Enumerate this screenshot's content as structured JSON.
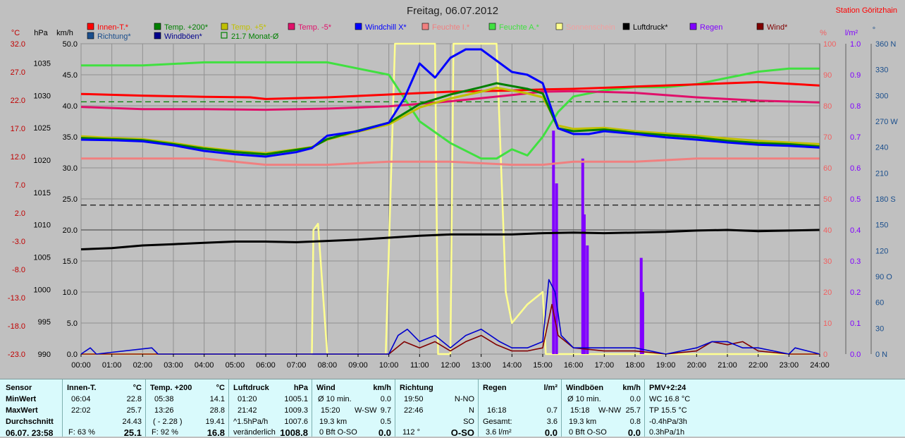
{
  "title": "Freitag, 06.07.2012",
  "station": "Station Göritzhain",
  "axis_units": {
    "temp": "°C",
    "pressure": "hPa",
    "wind": "km/h",
    "humidity": "%",
    "rain": "l/m²",
    "direction": "°"
  },
  "legend": [
    {
      "label": "Innen-T.*",
      "color": "#ff0000",
      "style": "solid"
    },
    {
      "label": "Temp. +200*",
      "color": "#008000",
      "style": "solid"
    },
    {
      "label": "Temp. +5*",
      "color": "#c0c000",
      "style": "solid"
    },
    {
      "label": "Temp. -5*",
      "color": "#e0106a",
      "style": "solid"
    },
    {
      "label": "Windchill X*",
      "color": "#0000ff",
      "style": "solid"
    },
    {
      "label": "Feuchte I.*",
      "color": "#f08080",
      "style": "solid"
    },
    {
      "label": "Feuchte A.*",
      "color": "#40e040",
      "style": "solid"
    },
    {
      "label": "Sonnenschein",
      "color": "#ffff90",
      "style": "solid"
    },
    {
      "label": "Luftdruck*",
      "color": "#000000",
      "style": "solid"
    },
    {
      "label": "Regen",
      "color": "#8000ff",
      "style": "solid"
    },
    {
      "label": "Wind*",
      "color": "#800000",
      "style": "solid"
    },
    {
      "label": "Richtung*",
      "color": "#1a4e8c",
      "style": "solid"
    },
    {
      "label": "Windböen*",
      "color": "#00008b",
      "style": "solid"
    },
    {
      "label": "21.7 Monat-Ø",
      "color": "#008000",
      "style": "hollow"
    }
  ],
  "chart_data": {
    "type": "line",
    "title": "Freitag, 06.07.2012",
    "x_ticks": [
      "00:00",
      "01:00",
      "02:00",
      "03:00",
      "04:00",
      "05:00",
      "06:00",
      "07:00",
      "08:00",
      "09:00",
      "10:00",
      "11:00",
      "12:00",
      "13:00",
      "14:00",
      "15:00",
      "16:00",
      "17:00",
      "18:00",
      "19:00",
      "20:00",
      "21:00",
      "22:00",
      "23:00",
      "24:00"
    ],
    "xlim": [
      0,
      24
    ],
    "y_axes": {
      "temp": {
        "unit": "°C",
        "ticks": [
          "32.0",
          "27.0",
          "22.0",
          "17.0",
          "12.0",
          "7.0",
          "2.0",
          "-3.0",
          "-8.0",
          "-13.0",
          "-18.0",
          "-23.0"
        ],
        "range": [
          -23,
          32
        ]
      },
      "pressure": {
        "unit": "hPa",
        "ticks": [
          "1035",
          "1030",
          "1025",
          "1020",
          "1015",
          "1010",
          "1005",
          "1000",
          "995",
          "990"
        ],
        "range": [
          990,
          1038
        ]
      },
      "wind": {
        "unit": "km/h",
        "ticks": [
          "50.0",
          "45.0",
          "40.0",
          "35.0",
          "30.0",
          "25.0",
          "20.0",
          "15.0",
          "10.0",
          "5.0",
          "0.0"
        ],
        "range": [
          0,
          50
        ]
      },
      "humidity": {
        "unit": "%",
        "ticks": [
          "100",
          "90",
          "80",
          "70",
          "60",
          "50",
          "40",
          "30",
          "20",
          "10",
          "0"
        ],
        "range": [
          0,
          100
        ]
      },
      "rain": {
        "unit": "l/m²",
        "ticks": [
          "1.0",
          "0.9",
          "0.8",
          "0.7",
          "0.6",
          "0.5",
          "0.4",
          "0.3",
          "0.2",
          "0.1",
          "0.0"
        ],
        "range": [
          0,
          1
        ]
      },
      "direction": {
        "unit": "°",
        "ticks": [
          "360 N",
          "330",
          "300",
          "270 W",
          "240",
          "210",
          "180 S",
          "150",
          "120",
          "90 O",
          "60",
          "30",
          "0 N"
        ],
        "range": [
          0,
          360
        ]
      }
    },
    "reference_lines": [
      {
        "axis": "temp",
        "value": 21.7,
        "color": "#008000",
        "style": "dash"
      },
      {
        "axis": "humidity",
        "value": 48,
        "color": "#000000",
        "style": "dash"
      },
      {
        "axis": "wind",
        "value": 20,
        "color": "#666666",
        "style": "solid"
      }
    ],
    "series": [
      {
        "name": "Innen-T.*",
        "axis": "temp",
        "color": "#ff0000",
        "x": [
          0,
          2,
          4,
          5.5,
          6,
          8,
          10,
          12,
          14,
          15,
          16,
          18,
          20,
          21,
          22,
          23,
          24
        ],
        "y": [
          23.1,
          22.8,
          22.6,
          22.5,
          22.2,
          22.5,
          23.0,
          23.5,
          23.7,
          23.9,
          24.0,
          24.4,
          24.8,
          25.0,
          25.2,
          24.9,
          24.6
        ]
      },
      {
        "name": "Temp. +200*",
        "axis": "temp",
        "color": "#008000",
        "x": [
          0,
          1,
          2,
          3,
          4,
          5,
          6,
          7,
          7.5,
          8,
          9,
          10,
          11,
          12,
          13,
          13.5,
          14,
          14.5,
          15,
          15.5,
          16,
          17,
          18,
          19,
          20,
          21,
          22,
          23,
          24
        ],
        "y": [
          15.3,
          15.1,
          14.9,
          14.2,
          13.4,
          12.8,
          12.4,
          13.2,
          13.6,
          15.1,
          16.6,
          18.0,
          21.3,
          23.0,
          24.3,
          25.0,
          24.5,
          24.0,
          23.2,
          17.0,
          16.5,
          16.8,
          16.2,
          15.8,
          15.4,
          14.8,
          14.4,
          14.2,
          13.8
        ]
      },
      {
        "name": "Temp. +5*",
        "axis": "temp",
        "color": "#c0c000",
        "x": [
          0,
          1,
          2,
          3,
          4,
          5,
          6,
          7,
          7.5,
          8,
          9,
          10,
          11,
          12,
          13,
          13.5,
          14,
          14.5,
          15,
          15.5,
          16,
          17,
          18,
          19,
          20,
          21,
          22,
          23,
          24
        ],
        "y": [
          15.6,
          15.3,
          15.1,
          14.4,
          13.6,
          13.0,
          12.6,
          13.3,
          13.7,
          15.0,
          16.4,
          17.7,
          20.7,
          22.3,
          23.5,
          24.2,
          23.7,
          23.2,
          22.5,
          17.5,
          16.9,
          17.1,
          16.5,
          16.1,
          15.7,
          15.2,
          14.8,
          14.5,
          14.2
        ]
      },
      {
        "name": "Windchill X*",
        "axis": "temp",
        "color": "#0000ff",
        "x": [
          0,
          1,
          2,
          3,
          4,
          5,
          6,
          7,
          7.5,
          8,
          9,
          10,
          10.5,
          11,
          11.5,
          12,
          12.5,
          13,
          13.5,
          14,
          14.5,
          15,
          15.5,
          16,
          16.5,
          17,
          18,
          19,
          20,
          21,
          22,
          23,
          24
        ],
        "y": [
          15.0,
          14.9,
          14.7,
          14.0,
          13.0,
          12.4,
          12.0,
          12.8,
          13.5,
          15.7,
          16.5,
          18.0,
          22.3,
          28.5,
          26.0,
          29.5,
          31.0,
          31.0,
          29.0,
          27.0,
          26.5,
          25.0,
          17.0,
          16.0,
          16.0,
          16.5,
          16.0,
          15.4,
          15.0,
          14.5,
          14.1,
          13.9,
          13.6
        ]
      },
      {
        "name": "Temp. -5*",
        "axis": "temp",
        "color": "#e0106a",
        "x": [
          0,
          2,
          4,
          6,
          8,
          10,
          12,
          14,
          15,
          16,
          18,
          20,
          22,
          24
        ],
        "y": [
          20.8,
          20.4,
          20.4,
          20.3,
          20.5,
          20.9,
          21.8,
          22.9,
          23.5,
          23.6,
          23.3,
          22.5,
          21.9,
          21.6
        ]
      },
      {
        "name": "Luftdruck*",
        "axis": "pressure",
        "color": "#000000",
        "x": [
          0,
          1,
          2,
          3,
          4,
          5,
          6,
          7,
          8,
          9,
          10,
          11,
          12,
          13,
          14,
          15,
          16,
          17,
          18,
          19,
          20,
          21,
          22,
          23,
          24
        ],
        "y": [
          1006.2,
          1006.4,
          1006.8,
          1007.0,
          1007.2,
          1007.4,
          1007.4,
          1007.3,
          1007.5,
          1007.7,
          1008.0,
          1008.3,
          1008.5,
          1008.5,
          1008.5,
          1008.7,
          1008.8,
          1008.7,
          1008.8,
          1008.9,
          1009.1,
          1009.2,
          1009.0,
          1009.1,
          1009.2
        ]
      },
      {
        "name": "Feuchte I.*",
        "axis": "humidity",
        "color": "#f08080",
        "x": [
          0,
          2,
          4,
          5,
          6,
          8,
          10,
          12,
          14,
          15,
          16,
          18,
          20,
          22,
          24
        ],
        "y": [
          63,
          63,
          63,
          62,
          61,
          61,
          62,
          62,
          61,
          61,
          62,
          62,
          63,
          63,
          63
        ]
      },
      {
        "name": "Feuchte A.*",
        "axis": "humidity",
        "color": "#40e040",
        "x": [
          0,
          2,
          4,
          6,
          8,
          9,
          10,
          11,
          12,
          13,
          13.5,
          14,
          14.5,
          15,
          15.5,
          16,
          17,
          18,
          19,
          20,
          21,
          22,
          23,
          24
        ],
        "y": [
          93,
          93,
          94,
          94,
          94,
          92,
          90,
          75,
          68,
          63,
          63,
          66,
          64,
          70,
          78,
          83,
          85,
          86,
          86,
          87,
          89,
          91,
          92,
          92
        ]
      },
      {
        "name": "Sonnenschein",
        "axis": "wind",
        "color": "#ffff90",
        "x": [
          0,
          7.5,
          7.55,
          7.7,
          8.0,
          8.1,
          9.9,
          10.2,
          11.5,
          11.6,
          12.0,
          12.1,
          13.5,
          13.8,
          14.0,
          14.5,
          15.0,
          15.1,
          24
        ],
        "y": [
          0,
          0,
          20,
          21,
          0,
          0,
          0,
          50,
          50,
          0,
          0,
          50,
          50,
          10,
          5,
          8,
          10,
          0,
          0
        ]
      },
      {
        "name": "Wind*",
        "axis": "wind",
        "color": "#800000",
        "x": [
          0,
          10,
          10.5,
          11,
          11.5,
          12,
          12.5,
          13,
          13.5,
          14,
          14.5,
          15,
          15.3,
          15.5,
          16,
          17,
          18,
          19,
          20,
          20.5,
          21,
          21.5,
          22,
          23,
          24
        ],
        "y": [
          0,
          0,
          2,
          1,
          2,
          0.5,
          2,
          3,
          1.5,
          0.5,
          0.5,
          1,
          8,
          3,
          1,
          0.5,
          0.5,
          0,
          0.5,
          2,
          1.5,
          2,
          0.5,
          0,
          0
        ]
      },
      {
        "name": "Windböen*",
        "axis": "wind",
        "color": "#0000cc",
        "x": [
          0,
          0.3,
          0.5,
          2.3,
          2.5,
          10,
          10.3,
          10.6,
          11,
          11.5,
          12,
          12.5,
          13,
          13.3,
          13.6,
          14,
          14.5,
          15,
          15.2,
          15.4,
          15.6,
          16,
          17,
          18,
          19,
          20,
          20.5,
          21,
          21.5,
          22,
          23,
          23.2,
          24
        ],
        "y": [
          0,
          1,
          0,
          1,
          0,
          0,
          3,
          4,
          2,
          3,
          1,
          3,
          4,
          3,
          2,
          1,
          1,
          2,
          12,
          10,
          3,
          1,
          1,
          1,
          0,
          1,
          2,
          2,
          1,
          1,
          0,
          1,
          0
        ]
      },
      {
        "name": "Regen",
        "axis": "rain",
        "color": "#8000ff",
        "x": [
          15.35,
          15.45,
          16.3,
          16.35,
          16.45,
          18.2,
          18.25
        ],
        "y": [
          0.72,
          0.55,
          0.63,
          0.45,
          0.35,
          0.31,
          0.2
        ]
      }
    ]
  },
  "panel": {
    "sensor": {
      "header": "Sensor",
      "rows": [
        "MinWert",
        "MaxWert",
        "Durchschnitt",
        "06.07. 23:58"
      ]
    },
    "innen": {
      "header": "Innen-T.",
      "unit": "°C",
      "rows": [
        [
          "06:04",
          "22.8"
        ],
        [
          "22:02",
          "25.7"
        ],
        [
          "",
          "24.43"
        ],
        [
          "F: 63 %",
          "25.1"
        ]
      ]
    },
    "temp200": {
      "header": "Temp. +200",
      "unit": "°C",
      "rows": [
        [
          "05:38",
          "14.1"
        ],
        [
          "13:26",
          "28.8"
        ],
        [
          "( - 2.28 )",
          "19.41"
        ],
        [
          "F: 92 %",
          "16.8"
        ]
      ]
    },
    "luftdruck": {
      "header": "Luftdruck",
      "unit": "hPa",
      "rows": [
        [
          "01:20",
          "1005.1"
        ],
        [
          "21:42",
          "1009.3"
        ],
        [
          "^1.5hPa/h",
          "1007.6"
        ],
        [
          "veränderlich",
          "1008.8"
        ]
      ]
    },
    "wind": {
      "header": "Wind",
      "unit": "km/h",
      "rows": [
        [
          "Ø 10 min.",
          "",
          "0.0"
        ],
        [
          "15:20",
          "W-SW",
          "9.7"
        ],
        [
          "19.3 km",
          "",
          "0.5"
        ],
        [
          "0 Bft O-SO",
          "",
          "0.0"
        ]
      ]
    },
    "richtung": {
      "header": "Richtung",
      "rows": [
        [
          "19:50",
          "N-NO"
        ],
        [
          "22:46",
          "N"
        ],
        [
          "",
          "SO"
        ],
        [
          "112 °",
          "O-SO"
        ]
      ]
    },
    "regen": {
      "header": "Regen",
      "unit": "l/m²",
      "rows": [
        [
          "",
          ""
        ],
        [
          "16:18",
          "0.7"
        ],
        [
          "Gesamt:",
          "3.6"
        ],
        [
          "3.6 l/m²",
          "0.0"
        ]
      ]
    },
    "boeen": {
      "header": "Windböen",
      "unit": "km/h",
      "rows": [
        [
          "Ø 10 min.",
          "",
          "0.0"
        ],
        [
          "15:18",
          "W-NW",
          "25.7"
        ],
        [
          "19.3 km",
          "",
          "0.8"
        ],
        [
          "0 Bft O-SO",
          "",
          "0.0"
        ]
      ]
    },
    "pmv": {
      "header": "PMV+2:24",
      "rows": [
        "WC 16.8 °C",
        "TP 15.5 °C",
        "-0.4hPa/3h",
        "0.3hPa/1h"
      ]
    }
  }
}
